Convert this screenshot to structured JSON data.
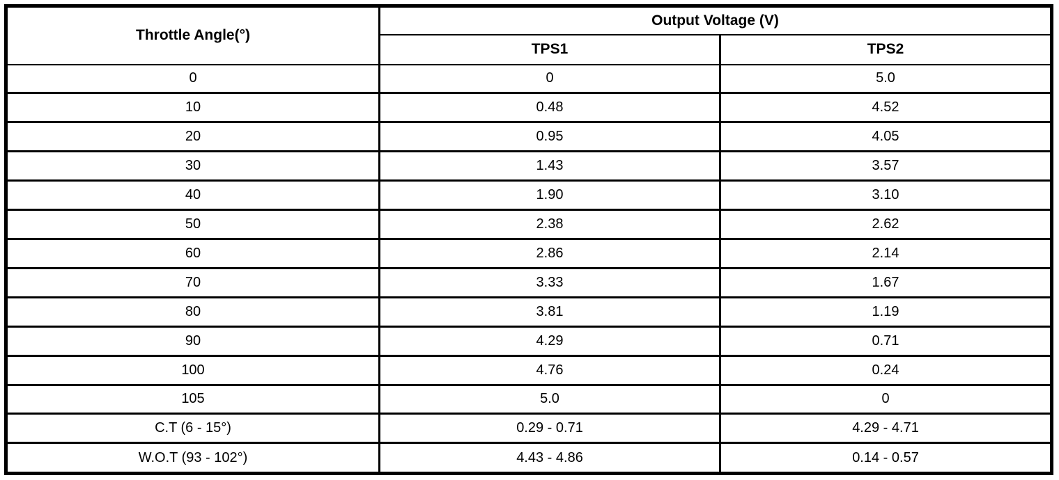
{
  "table": {
    "border_color": "#000000",
    "background_color": "#ffffff",
    "text_color": "#000000",
    "throttle_angle_header": "Throttle Angle(°)",
    "output_voltage_header": "Output Voltage (V)",
    "sub_headers": [
      "TPS1",
      "TPS2"
    ],
    "rows": [
      {
        "angle": "0",
        "tps1": "0",
        "tps2": "5.0"
      },
      {
        "angle": "10",
        "tps1": "0.48",
        "tps2": "4.52"
      },
      {
        "angle": "20",
        "tps1": "0.95",
        "tps2": "4.05"
      },
      {
        "angle": "30",
        "tps1": "1.43",
        "tps2": "3.57"
      },
      {
        "angle": "40",
        "tps1": "1.90",
        "tps2": "3.10"
      },
      {
        "angle": "50",
        "tps1": "2.38",
        "tps2": "2.62"
      },
      {
        "angle": "60",
        "tps1": "2.86",
        "tps2": "2.14"
      },
      {
        "angle": "70",
        "tps1": "3.33",
        "tps2": "1.67"
      },
      {
        "angle": "80",
        "tps1": "3.81",
        "tps2": "1.19"
      },
      {
        "angle": "90",
        "tps1": "4.29",
        "tps2": "0.71"
      },
      {
        "angle": "100",
        "tps1": "4.76",
        "tps2": "0.24"
      },
      {
        "angle": "105",
        "tps1": "5.0",
        "tps2": "0"
      },
      {
        "angle": "C.T (6 - 15°)",
        "tps1": "0.29 - 0.71",
        "tps2": "4.29 - 4.71"
      },
      {
        "angle": "W.O.T (93 - 102°)",
        "tps1": "4.43 - 4.86",
        "tps2": "0.14 - 0.57"
      }
    ]
  }
}
